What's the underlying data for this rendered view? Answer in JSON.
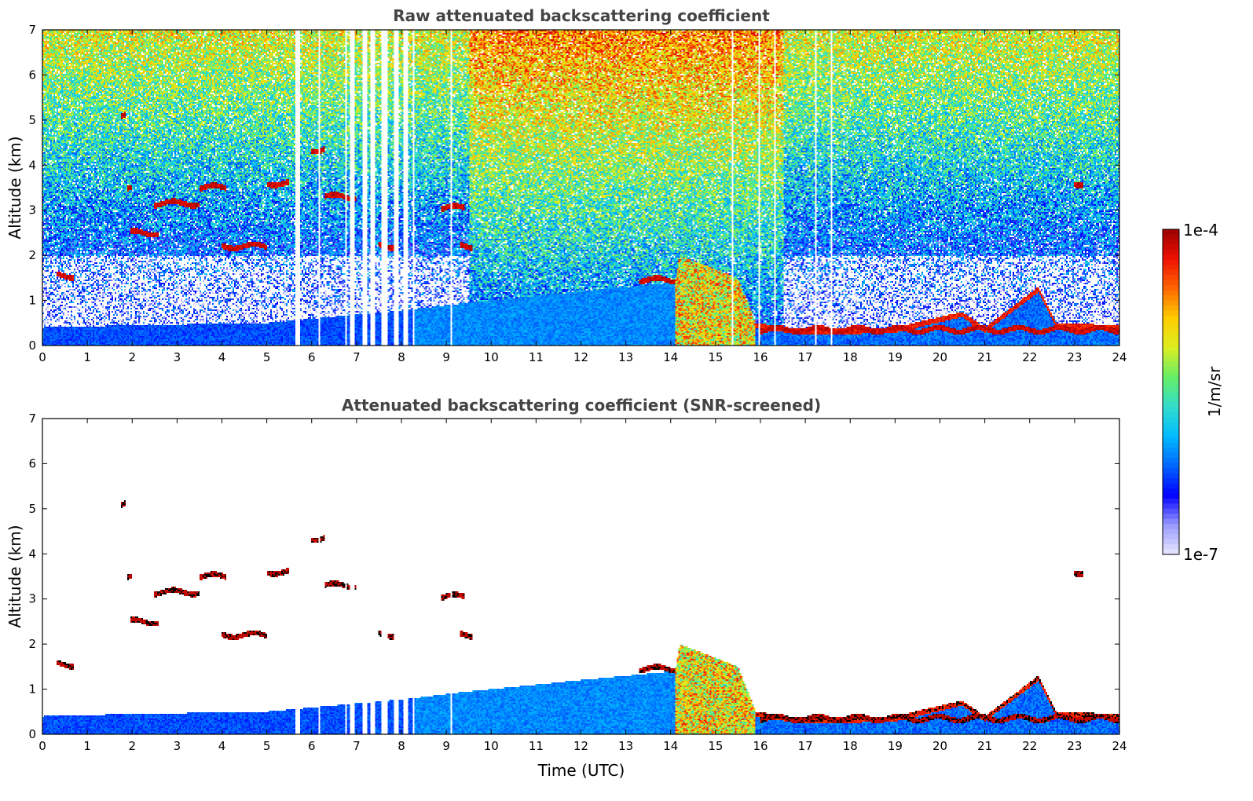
{
  "chart_data": [
    {
      "type": "heatmap",
      "title": "Raw attenuated backscattering coefficient",
      "xlabel": "",
      "ylabel": "Altitude (km)",
      "xlim": [
        0,
        24
      ],
      "ylim": [
        0,
        7
      ],
      "xticks": [
        "0",
        "1",
        "2",
        "3",
        "4",
        "5",
        "6",
        "7",
        "8",
        "9",
        "10",
        "11",
        "12",
        "13",
        "14",
        "15",
        "16",
        "17",
        "18",
        "19",
        "20",
        "21",
        "22",
        "23",
        "24"
      ],
      "yticks": [
        "0",
        "1",
        "2",
        "3",
        "4",
        "5",
        "6",
        "7"
      ],
      "variable": "raw",
      "boundary_layer_top_km": [
        {
          "t": 0,
          "z": 0.4
        },
        {
          "t": 2,
          "z": 0.45
        },
        {
          "t": 5,
          "z": 0.5
        },
        {
          "t": 8.3,
          "z": 0.8
        },
        {
          "t": 9.5,
          "z": 0.95
        },
        {
          "t": 12,
          "z": 1.2
        },
        {
          "t": 14.1,
          "z": 1.4
        },
        {
          "t": 14.2,
          "z": 2.0
        },
        {
          "t": 15.5,
          "z": 1.5
        },
        {
          "t": 15.9,
          "z": 0.5
        },
        {
          "t": 17,
          "z": 0.35
        },
        {
          "t": 19,
          "z": 0.4
        },
        {
          "t": 20.5,
          "z": 0.75
        },
        {
          "t": 21,
          "z": 0.4
        },
        {
          "t": 22.2,
          "z": 1.3
        },
        {
          "t": 22.6,
          "z": 0.5
        },
        {
          "t": 24,
          "z": 0.45
        }
      ],
      "data_gaps_utc": [
        [
          5.65,
          5.75
        ],
        [
          6.15,
          6.2
        ],
        [
          6.75,
          6.8
        ],
        [
          6.85,
          6.95
        ],
        [
          7.15,
          7.25
        ],
        [
          7.3,
          7.4
        ],
        [
          7.55,
          7.7
        ],
        [
          7.85,
          7.95
        ],
        [
          8.05,
          8.15
        ],
        [
          8.25,
          8.3
        ],
        [
          9.1,
          9.12
        ],
        [
          15.35,
          15.4
        ],
        [
          15.95,
          16.0
        ],
        [
          16.3,
          16.35
        ],
        [
          17.2,
          17.25
        ],
        [
          17.55,
          17.6
        ]
      ],
      "cloud_layers": [
        {
          "t0": 0.3,
          "t1": 0.7,
          "z": 1.55
        },
        {
          "t0": 1.75,
          "t1": 1.85,
          "z": 5.1
        },
        {
          "t0": 1.9,
          "t1": 2.0,
          "z": 3.45
        },
        {
          "t0": 1.95,
          "t1": 2.6,
          "z": 2.5
        },
        {
          "t0": 2.5,
          "t1": 3.5,
          "z": 3.15
        },
        {
          "t0": 3.5,
          "t1": 4.1,
          "z": 3.5
        },
        {
          "t0": 4.0,
          "t1": 5.0,
          "z": 2.2
        },
        {
          "t0": 5.0,
          "t1": 5.5,
          "z": 3.6
        },
        {
          "t0": 6.0,
          "t1": 6.3,
          "z": 4.35
        },
        {
          "t0": 6.3,
          "t1": 7.0,
          "z": 3.3
        },
        {
          "t0": 7.5,
          "t1": 7.9,
          "z": 2.2
        },
        {
          "t0": 8.9,
          "t1": 9.4,
          "z": 3.05
        },
        {
          "t0": 9.3,
          "t1": 9.6,
          "z": 2.2
        },
        {
          "t0": 13.3,
          "t1": 14.1,
          "z": 1.45
        },
        {
          "t0": 16.0,
          "t1": 24.0,
          "z": 0.35
        },
        {
          "t0": 23.0,
          "t1": 23.2,
          "z": 3.6
        }
      ]
    },
    {
      "type": "heatmap",
      "title": "Attenuated backscattering coefficient (SNR-screened)",
      "xlabel": "Time (UTC)",
      "ylabel": "Altitude (km)",
      "xlim": [
        0,
        24
      ],
      "ylim": [
        0,
        7
      ],
      "xticks": [
        "0",
        "1",
        "2",
        "3",
        "4",
        "5",
        "6",
        "7",
        "8",
        "9",
        "10",
        "11",
        "12",
        "13",
        "14",
        "15",
        "16",
        "17",
        "18",
        "19",
        "20",
        "21",
        "22",
        "23",
        "24"
      ],
      "yticks": [
        "0",
        "1",
        "2",
        "3",
        "4",
        "5",
        "6",
        "7"
      ],
      "variable": "snr_screened",
      "boundary_layer_top_km": [
        {
          "t": 0,
          "z": 0.4
        },
        {
          "t": 2,
          "z": 0.45
        },
        {
          "t": 5,
          "z": 0.5
        },
        {
          "t": 8.3,
          "z": 0.8
        },
        {
          "t": 9.5,
          "z": 0.95
        },
        {
          "t": 12,
          "z": 1.2
        },
        {
          "t": 14.1,
          "z": 1.4
        },
        {
          "t": 14.2,
          "z": 2.0
        },
        {
          "t": 15.5,
          "z": 1.5
        },
        {
          "t": 15.9,
          "z": 0.5
        },
        {
          "t": 17,
          "z": 0.35
        },
        {
          "t": 19,
          "z": 0.4
        },
        {
          "t": 20.5,
          "z": 0.75
        },
        {
          "t": 21,
          "z": 0.4
        },
        {
          "t": 22.2,
          "z": 1.3
        },
        {
          "t": 22.6,
          "z": 0.5
        },
        {
          "t": 24,
          "z": 0.45
        }
      ],
      "data_gaps_utc": [
        [
          5.65,
          5.75
        ],
        [
          6.15,
          6.2
        ],
        [
          6.75,
          6.8
        ],
        [
          6.85,
          6.95
        ],
        [
          7.15,
          7.25
        ],
        [
          7.3,
          7.4
        ],
        [
          7.55,
          7.7
        ],
        [
          7.85,
          7.95
        ],
        [
          8.05,
          8.15
        ],
        [
          8.25,
          8.3
        ],
        [
          9.1,
          9.12
        ]
      ],
      "cloud_layers": [
        {
          "t0": 0.3,
          "t1": 0.7,
          "z": 1.55
        },
        {
          "t0": 1.75,
          "t1": 1.85,
          "z": 5.1
        },
        {
          "t0": 1.9,
          "t1": 2.0,
          "z": 3.45
        },
        {
          "t0": 1.95,
          "t1": 2.6,
          "z": 2.5
        },
        {
          "t0": 2.5,
          "t1": 3.5,
          "z": 3.15
        },
        {
          "t0": 3.5,
          "t1": 4.1,
          "z": 3.5
        },
        {
          "t0": 4.0,
          "t1": 5.0,
          "z": 2.2
        },
        {
          "t0": 5.0,
          "t1": 5.5,
          "z": 3.6
        },
        {
          "t0": 6.0,
          "t1": 6.3,
          "z": 4.35
        },
        {
          "t0": 6.3,
          "t1": 7.0,
          "z": 3.3
        },
        {
          "t0": 7.5,
          "t1": 7.9,
          "z": 2.2
        },
        {
          "t0": 8.9,
          "t1": 9.4,
          "z": 3.05
        },
        {
          "t0": 9.3,
          "t1": 9.6,
          "z": 2.2
        },
        {
          "t0": 13.3,
          "t1": 14.1,
          "z": 1.45
        },
        {
          "t0": 16.0,
          "t1": 24.0,
          "z": 0.35
        },
        {
          "t0": 23.0,
          "t1": 23.2,
          "z": 3.6
        }
      ]
    }
  ],
  "colorbar": {
    "label": "1/m/sr",
    "max_label": "1e-4",
    "min_label": "1e-7",
    "scale": "log",
    "range": [
      1e-07,
      0.0001
    ],
    "colors": [
      "#e8e8ff",
      "#9999ff",
      "#0000ff",
      "#0066ff",
      "#00bbff",
      "#33ddcc",
      "#66ee66",
      "#ddee22",
      "#ffcc00",
      "#ff6600",
      "#ee1100",
      "#990000"
    ]
  }
}
